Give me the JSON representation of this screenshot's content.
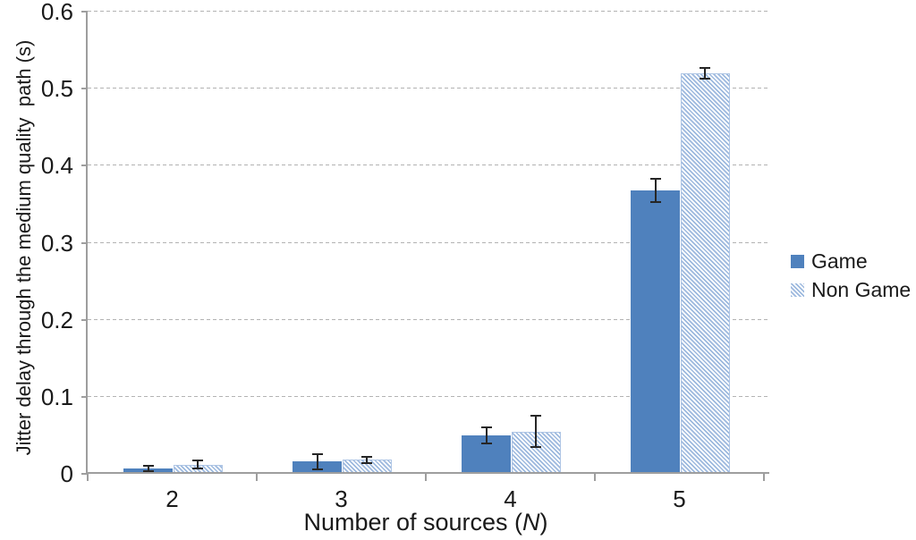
{
  "chart_data": {
    "type": "bar",
    "xlabel": "Number of sources (N)",
    "xlabel_prefix": "Number of sources (",
    "xlabel_italic": "N",
    "xlabel_suffix": ")",
    "ylabel": "Jitter delay through the medium quality  path (s)",
    "categories": [
      "2",
      "3",
      "4",
      "5"
    ],
    "series": [
      {
        "name": "Game",
        "fill": "solid",
        "color": "#4f81bd",
        "values": [
          0.007,
          0.016,
          0.05,
          0.368
        ],
        "errors": [
          0.004,
          0.01,
          0.01,
          0.015
        ]
      },
      {
        "name": "Non Game",
        "fill": "diagonal-hatch",
        "color": "#9db9de",
        "values": [
          0.012,
          0.018,
          0.055,
          0.52
        ],
        "errors": [
          0.005,
          0.004,
          0.02,
          0.007
        ]
      }
    ],
    "ylim": [
      0,
      0.6
    ],
    "yticks": [
      0,
      0.1,
      0.2,
      0.3,
      0.4,
      0.5,
      0.6
    ],
    "ytick_labels": [
      "0",
      "0.1",
      "0.2",
      "0.3",
      "0.4",
      "0.5",
      "0.6"
    ],
    "grid": "horizontal-dashed",
    "error_bars": true,
    "legend_position": "right",
    "colors": {
      "axis": "#9e9e9e",
      "gridline": "#b3b3b3",
      "text": "#1a1a1a",
      "error_bar": "#262626",
      "background": "#ffffff"
    }
  }
}
